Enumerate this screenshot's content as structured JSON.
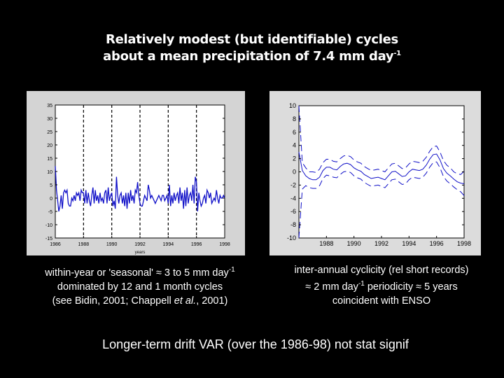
{
  "slide": {
    "title_line1": "Relatively modest (but identifiable) cycles",
    "title_line2": "about a mean precipitation of 7.4 mm day",
    "title_sup": "-1",
    "left_caption": {
      "line1": "within-year or 'seasonal' ≈ 3 to 5 mm day",
      "line1_sup": "-1",
      "line2": "dominated by 12 and 1 month cycles",
      "line3_a": "(see Bidin, 2001; Chappell ",
      "line3_em": "et al.",
      "line3_b": ", 2001)"
    },
    "right_caption": {
      "line1": "inter-annual cyclicity (rel short records)",
      "line2_a": "≈ 2 mm day",
      "line2_sup": "-1",
      "line2_b": " periodicity ≈ 5 years",
      "line3": "coincident with ENSO"
    },
    "bottom_text": "Longer-term drift VAR (over the 1986-98) not stat signif"
  },
  "chart_data": [
    {
      "type": "line",
      "title": "",
      "xlabel": "years",
      "ylabel": "",
      "xlim": [
        1986,
        1998
      ],
      "ylim": [
        -15,
        35
      ],
      "xticks": [
        "1986",
        "1988",
        "1990",
        "1992",
        "1994",
        "1996",
        "1998"
      ],
      "yticks": [
        "-15",
        "-10",
        "-5",
        "0",
        "5",
        "10",
        "15",
        "20",
        "25",
        "30",
        "35"
      ],
      "vlines_dashed": [
        1988,
        1990,
        1992,
        1994,
        1996
      ],
      "x_start": 1986,
      "x_step": 0.08333,
      "series": [
        {
          "name": "monthly anomaly",
          "color": "#1010c8",
          "values": [
            12,
            3,
            -1,
            -5,
            -3,
            1,
            -4,
            2,
            3,
            2,
            3,
            -2,
            -3,
            -3,
            0,
            -1,
            1,
            -1,
            2,
            1,
            2,
            -1,
            3,
            2,
            2,
            -2,
            3,
            -2,
            2,
            -1,
            -3,
            1,
            4,
            -2,
            3,
            -1,
            1,
            -2,
            2,
            -1,
            0,
            -2,
            2,
            3,
            -2,
            4,
            -1,
            1,
            2,
            -3,
            -1,
            -4,
            8,
            1,
            -2,
            1,
            2,
            -2,
            1,
            -3,
            2,
            -4,
            2,
            -2,
            3,
            -1,
            1,
            -2,
            3,
            2,
            6,
            1,
            -2,
            -3,
            -3,
            -1,
            1,
            0,
            -1,
            5,
            3,
            0,
            1,
            0,
            -1,
            -2,
            -1,
            0,
            1,
            0,
            -1,
            1,
            1,
            -1,
            0,
            1,
            -2,
            5,
            -3,
            1,
            -2,
            2,
            -1,
            1,
            2,
            -2,
            4,
            -1,
            2,
            -4,
            3,
            -3,
            4,
            -2,
            1,
            2,
            -1,
            5,
            -2,
            8,
            6,
            -5,
            2,
            -1,
            -3,
            -2,
            0,
            1,
            -2,
            3,
            2,
            0,
            2,
            -2,
            -1,
            0,
            -1,
            3,
            0,
            -2,
            1,
            0,
            0,
            1,
            0
          ]
        }
      ]
    },
    {
      "type": "line",
      "title": "",
      "xlabel": "",
      "ylabel": "",
      "xlim": [
        1986,
        1998
      ],
      "ylim": [
        -10,
        10
      ],
      "xticks": [
        "1988",
        "1990",
        "1992",
        "1994",
        "1996",
        "1998"
      ],
      "yticks": [
        "-10",
        "-8",
        "-6",
        "-4",
        "-2",
        "0",
        "2",
        "4",
        "6",
        "8",
        "10"
      ],
      "x_start": 1986,
      "x_step": 0.25,
      "series": [
        {
          "name": "trend",
          "style": "solid",
          "color": "#1010c8",
          "values": [
            3,
            0.2,
            -0.6,
            -1.0,
            -1.2,
            -1.2,
            -0.8,
            0.2,
            0.7,
            0.7,
            0.4,
            0.3,
            0.8,
            1.2,
            1.3,
            1.1,
            0.6,
            0.3,
            0.1,
            -0.4,
            -0.7,
            -1.0,
            -0.9,
            -0.8,
            -1.0,
            -1.2,
            -0.6,
            0.0,
            0.1,
            -0.3,
            -0.7,
            -0.6,
            0.0,
            0.4,
            0.3,
            0.2,
            0.4,
            1.0,
            1.9,
            2.6,
            2.7,
            1.8,
            0.5,
            -0.2,
            -0.6,
            -1.1,
            -1.5,
            -1.7,
            -1.8
          ]
        },
        {
          "name": "upper bound",
          "style": "dashed",
          "color": "#1010c8",
          "values": [
            10,
            1.4,
            0.6,
            0.0,
            0.0,
            -0.1,
            0.4,
            1.4,
            1.9,
            1.9,
            1.6,
            1.5,
            2.0,
            2.4,
            2.5,
            2.3,
            1.8,
            1.5,
            1.3,
            0.8,
            0.5,
            0.2,
            0.3,
            0.4,
            0.2,
            0.0,
            0.6,
            1.2,
            1.3,
            0.9,
            0.5,
            0.6,
            1.2,
            1.6,
            1.5,
            1.4,
            1.6,
            2.2,
            3.1,
            3.8,
            3.9,
            3.0,
            1.7,
            1.0,
            0.6,
            0.0,
            -0.3,
            -0.4,
            0.1
          ]
        },
        {
          "name": "lower bound",
          "style": "dashed",
          "color": "#1010c8",
          "values": [
            -10,
            -2.6,
            -2.1,
            -2.4,
            -2.5,
            -2.5,
            -2.1,
            -1.0,
            -0.5,
            -0.6,
            -0.8,
            -0.9,
            -0.4,
            0.0,
            0.1,
            -0.1,
            -0.6,
            -0.9,
            -1.1,
            -1.6,
            -1.9,
            -2.2,
            -2.1,
            -2.0,
            -2.2,
            -2.4,
            -1.8,
            -1.2,
            -1.1,
            -1.5,
            -1.9,
            -1.8,
            -1.2,
            -0.8,
            -0.9,
            -1.0,
            -0.8,
            -0.2,
            0.7,
            1.4,
            1.5,
            0.6,
            -0.7,
            -1.4,
            -1.8,
            -2.3,
            -2.7,
            -3.0,
            -3.6
          ]
        }
      ]
    }
  ]
}
